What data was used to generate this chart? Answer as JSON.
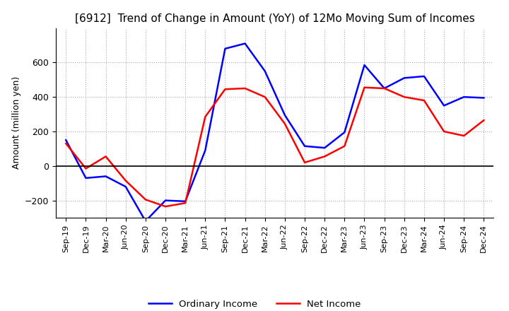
{
  "title": "[6912]  Trend of Change in Amount (YoY) of 12Mo Moving Sum of Incomes",
  "ylabel": "Amount (million yen)",
  "xlim_labels": [
    "Sep-19",
    "Dec-19",
    "Mar-20",
    "Jun-20",
    "Sep-20",
    "Dec-20",
    "Mar-21",
    "Jun-21",
    "Sep-21",
    "Dec-21",
    "Mar-22",
    "Jun-22",
    "Sep-22",
    "Dec-22",
    "Mar-23",
    "Jun-23",
    "Sep-23",
    "Dec-23",
    "Mar-24",
    "Jun-24",
    "Sep-24",
    "Dec-24"
  ],
  "ordinary_income": [
    150,
    -70,
    -60,
    -120,
    -320,
    -200,
    -205,
    90,
    680,
    710,
    550,
    295,
    115,
    105,
    195,
    585,
    450,
    510,
    520,
    350,
    400,
    395
  ],
  "net_income": [
    130,
    -15,
    55,
    -85,
    -195,
    -235,
    -215,
    285,
    445,
    450,
    400,
    245,
    20,
    55,
    115,
    455,
    450,
    400,
    380,
    200,
    175,
    265
  ],
  "ordinary_color": "#0000FF",
  "net_color": "#FF0000",
  "grid_color": "#AAAAAA",
  "ylim": [
    -300,
    800
  ],
  "yticks": [
    -200,
    0,
    200,
    400,
    600
  ],
  "background_color": "#FFFFFF",
  "legend_labels": [
    "Ordinary Income",
    "Net Income"
  ]
}
